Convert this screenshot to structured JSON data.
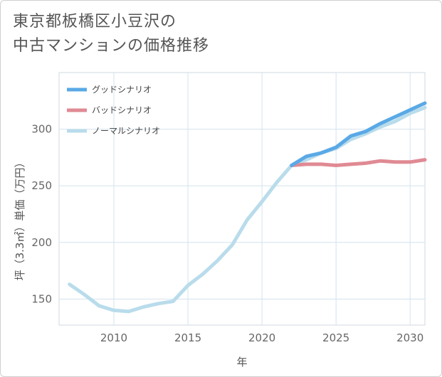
{
  "title": {
    "line1": "東京都板橋区小豆沢の",
    "line2": "中古マンションの価格推移"
  },
  "chart_data": {
    "type": "line",
    "xlabel": "年",
    "ylabel": "坪（3.3㎡）単価（万円）",
    "xlim": [
      2006.3,
      2031
    ],
    "ylim": [
      127,
      350
    ],
    "xticks": [
      2010,
      2015,
      2020,
      2025,
      2030
    ],
    "yticks": [
      150,
      200,
      250,
      300
    ],
    "grid": true,
    "legend_position": "top-left",
    "series": [
      {
        "name": "グッドシナリオ",
        "color": "#5aa9e6",
        "x": [
          2022,
          2023,
          2024,
          2025,
          2026,
          2027,
          2028,
          2029,
          2030,
          2031
        ],
        "values": [
          268,
          276,
          279,
          284,
          294,
          298,
          305,
          311,
          317,
          323
        ]
      },
      {
        "name": "バッドシナリオ",
        "color": "#e08a94",
        "x": [
          2022,
          2023,
          2024,
          2025,
          2026,
          2027,
          2028,
          2029,
          2030,
          2031
        ],
        "values": [
          268,
          269,
          269,
          268,
          269,
          270,
          272,
          271,
          271,
          273
        ]
      },
      {
        "name": "ノーマルシナリオ",
        "color": "#b9dceb",
        "x": [
          2007,
          2008,
          2009,
          2010,
          2011,
          2012,
          2013,
          2014,
          2015,
          2016,
          2017,
          2018,
          2019,
          2020,
          2021,
          2022,
          2023,
          2024,
          2025,
          2026,
          2027,
          2028,
          2029,
          2030,
          2031
        ],
        "values": [
          163,
          154,
          144,
          140,
          139,
          143,
          146,
          148,
          162,
          172,
          184,
          198,
          220,
          236,
          253,
          268,
          273,
          279,
          283,
          291,
          296,
          302,
          307,
          314,
          319
        ]
      }
    ]
  }
}
